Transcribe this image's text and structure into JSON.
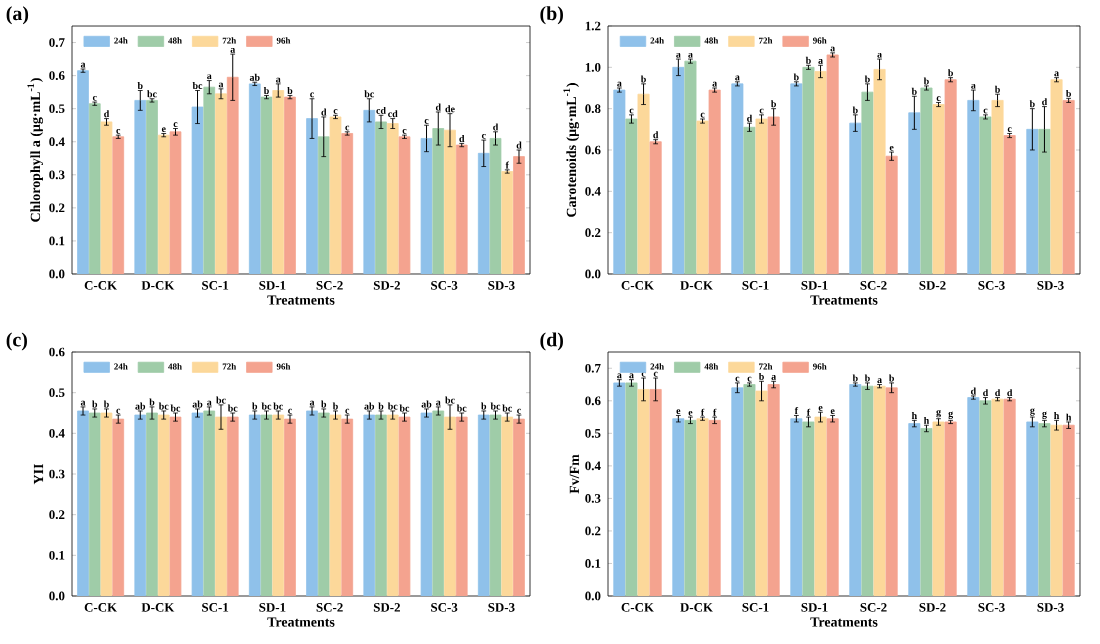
{
  "chart_data": [
    {
      "type": "bar",
      "title": "(a)",
      "xlabel": "Treatments",
      "ylabel": "Chlorophyll a (μg·mL$^{-1}$)",
      "categories": [
        "C-CK",
        "D-CK",
        "SC-1",
        "SD-1",
        "SC-2",
        "SD-2",
        "SC-3",
        "SD-3"
      ],
      "ylim": [
        0,
        0.75
      ],
      "yticks": [
        {
          "value": 0,
          "label": "0.0"
        },
        {
          "value": 0.1,
          "label": "0.1"
        },
        {
          "value": 0.2,
          "label": "0.2"
        },
        {
          "value": 0.3,
          "label": "0.3"
        },
        {
          "value": 0.4,
          "label": "0.4"
        },
        {
          "value": 0.5,
          "label": "0.5"
        },
        {
          "value": 0.6,
          "label": "0.6"
        },
        {
          "value": 0.7,
          "label": "0.7"
        }
      ],
      "legend": "top left",
      "series": [
        {
          "name": "24h",
          "color": "#8fc1ea",
          "values": [
            0.615,
            0.525,
            0.505,
            0.575,
            0.47,
            0.495,
            0.41,
            0.365
          ],
          "errors": [
            0.005,
            0.03,
            0.05,
            0.005,
            0.06,
            0.035,
            0.04,
            0.04
          ],
          "value_labels": [
            "a",
            "b",
            "bc",
            "ab",
            "c",
            "bc",
            "c",
            "c"
          ]
        },
        {
          "name": "48h",
          "color": "#9fcca8",
          "values": [
            0.515,
            0.525,
            0.565,
            0.535,
            0.415,
            0.46,
            0.44,
            0.41
          ],
          "errors": [
            0.005,
            0.005,
            0.02,
            0.005,
            0.06,
            0.02,
            0.05,
            0.02
          ],
          "value_labels": [
            "c",
            "bc",
            "a",
            "b",
            "d",
            "cd",
            "d",
            "d"
          ]
        },
        {
          "name": "72h",
          "color": "#fcd89a",
          "values": [
            0.46,
            0.42,
            0.545,
            0.555,
            0.475,
            0.455,
            0.435,
            0.31
          ],
          "errors": [
            0.01,
            0.005,
            0.015,
            0.02,
            0.005,
            0.015,
            0.05,
            0.005
          ],
          "value_labels": [
            "d",
            "e",
            "a",
            "a",
            "c",
            "cd",
            "de",
            "f"
          ]
        },
        {
          "name": "96h",
          "color": "#f4a38f",
          "values": [
            0.415,
            0.43,
            0.595,
            0.535,
            0.425,
            0.415,
            0.39,
            0.355
          ],
          "errors": [
            0.005,
            0.01,
            0.07,
            0.005,
            0.005,
            0.005,
            0.005,
            0.02
          ],
          "value_labels": [
            "c",
            "c",
            "a",
            "b",
            "c",
            "c",
            "d",
            "d"
          ]
        }
      ]
    },
    {
      "type": "bar",
      "title": "(b)",
      "xlabel": "Treatments",
      "ylabel": "Carotenoids (μg·mL$^{-1}$)",
      "categories": [
        "C-CK",
        "D-CK",
        "SC-1",
        "SD-1",
        "SC-2",
        "SD-2",
        "SC-3",
        "SD-3"
      ],
      "ylim": [
        0,
        1.2
      ],
      "yticks": [
        {
          "value": 0,
          "label": "0.0"
        },
        {
          "value": 0.2,
          "label": "0.2"
        },
        {
          "value": 0.4,
          "label": "0.4"
        },
        {
          "value": 0.6,
          "label": "0.6"
        },
        {
          "value": 0.8,
          "label": "0.8"
        },
        {
          "value": 1.0,
          "label": "1.0"
        },
        {
          "value": 1.2,
          "label": "1.2"
        }
      ],
      "legend": "top left",
      "series": [
        {
          "name": "24h",
          "color": "#8fc1ea",
          "values": [
            0.89,
            1.0,
            0.92,
            0.92,
            0.73,
            0.78,
            0.84,
            0.7
          ],
          "errors": [
            0.01,
            0.04,
            0.01,
            0.01,
            0.04,
            0.08,
            0.05,
            0.1
          ],
          "value_labels": [
            "a",
            "a",
            "a",
            "b",
            "b",
            "b",
            "a",
            "b"
          ]
        },
        {
          "name": "48h",
          "color": "#9fcca8",
          "values": [
            0.75,
            1.03,
            0.71,
            1.0,
            0.88,
            0.9,
            0.76,
            0.7
          ],
          "errors": [
            0.02,
            0.01,
            0.02,
            0.01,
            0.04,
            0.01,
            0.01,
            0.11
          ],
          "value_labels": [
            "c",
            "a",
            "d",
            "b",
            "b",
            "b",
            "c",
            "d"
          ]
        },
        {
          "name": "72h",
          "color": "#fcd89a",
          "values": [
            0.87,
            0.74,
            0.75,
            0.98,
            0.99,
            0.82,
            0.84,
            0.94
          ],
          "errors": [
            0.05,
            0.01,
            0.02,
            0.03,
            0.05,
            0.01,
            0.03,
            0.01
          ],
          "value_labels": [
            "b",
            "c",
            "c",
            "a",
            "a",
            "c",
            "b",
            "a"
          ]
        },
        {
          "name": "96h",
          "color": "#f4a38f",
          "values": [
            0.64,
            0.89,
            0.76,
            1.06,
            0.57,
            0.94,
            0.67,
            0.84
          ],
          "errors": [
            0.01,
            0.01,
            0.04,
            0.01,
            0.02,
            0.01,
            0.01,
            0.01
          ],
          "value_labels": [
            "d",
            "a",
            "b",
            "a",
            "e",
            "b",
            "c",
            "b"
          ]
        }
      ]
    },
    {
      "type": "bar",
      "title": "(c)",
      "xlabel": "Treatments",
      "ylabel": "YII",
      "categories": [
        "C-CK",
        "D-CK",
        "SC-1",
        "SD-1",
        "SC-2",
        "SD-2",
        "SC-3",
        "SD-3"
      ],
      "ylim": [
        0,
        0.6
      ],
      "yticks": [
        {
          "value": 0,
          "label": "0.0"
        },
        {
          "value": 0.1,
          "label": "0.1"
        },
        {
          "value": 0.2,
          "label": "0.2"
        },
        {
          "value": 0.3,
          "label": "0.3"
        },
        {
          "value": 0.4,
          "label": "0.4"
        },
        {
          "value": 0.5,
          "label": "0.5"
        },
        {
          "value": 0.6,
          "label": "0.6"
        }
      ],
      "legend": "top left",
      "series": [
        {
          "name": "24h",
          "color": "#8fc1ea",
          "values": [
            0.455,
            0.445,
            0.45,
            0.445,
            0.455,
            0.445,
            0.45,
            0.445
          ],
          "errors": [
            0.01,
            0.01,
            0.01,
            0.01,
            0.01,
            0.01,
            0.01,
            0.01
          ],
          "value_labels": [
            "a",
            "ab",
            "ab",
            "b",
            "a",
            "ab",
            "ab",
            "b"
          ]
        },
        {
          "name": "48h",
          "color": "#9fcca8",
          "values": [
            0.45,
            0.45,
            0.455,
            0.445,
            0.45,
            0.445,
            0.455,
            0.445
          ],
          "errors": [
            0.01,
            0.015,
            0.01,
            0.01,
            0.01,
            0.01,
            0.01,
            0.01
          ],
          "value_labels": [
            "b",
            "b",
            "a",
            "bc",
            "b",
            "b",
            "a",
            "bc"
          ]
        },
        {
          "name": "72h",
          "color": "#fcd89a",
          "values": [
            0.45,
            0.445,
            0.44,
            0.445,
            0.445,
            0.445,
            0.44,
            0.44
          ],
          "errors": [
            0.01,
            0.01,
            0.03,
            0.01,
            0.01,
            0.01,
            0.03,
            0.01
          ],
          "value_labels": [
            "b",
            "bc",
            "bc",
            "bc",
            "b",
            "bc",
            "bc",
            "bc"
          ]
        },
        {
          "name": "96h",
          "color": "#f4a38f",
          "values": [
            0.435,
            0.44,
            0.44,
            0.435,
            0.435,
            0.44,
            0.44,
            0.435
          ],
          "errors": [
            0.01,
            0.01,
            0.01,
            0.01,
            0.01,
            0.01,
            0.01,
            0.01
          ],
          "value_labels": [
            "c",
            "bc",
            "bc",
            "c",
            "c",
            "bc",
            "bc",
            "c"
          ]
        }
      ]
    },
    {
      "type": "bar",
      "title": "(d)",
      "xlabel": "Treatments",
      "ylabel": "Fv/Fm",
      "categories": [
        "C-CK",
        "D-CK",
        "SC-1",
        "SD-1",
        "SC-2",
        "SD-2",
        "SC-3",
        "SD-3"
      ],
      "ylim": [
        0,
        0.75
      ],
      "yticks": [
        {
          "value": 0,
          "label": "0.0"
        },
        {
          "value": 0.1,
          "label": "0.1"
        },
        {
          "value": 0.2,
          "label": "0.2"
        },
        {
          "value": 0.3,
          "label": "0.3"
        },
        {
          "value": 0.4,
          "label": "0.4"
        },
        {
          "value": 0.5,
          "label": "0.5"
        },
        {
          "value": 0.6,
          "label": "0.6"
        },
        {
          "value": 0.7,
          "label": "0.7"
        }
      ],
      "legend": "top left",
      "series": [
        {
          "name": "24h",
          "color": "#8fc1ea",
          "values": [
            0.655,
            0.545,
            0.64,
            0.545,
            0.65,
            0.53,
            0.61,
            0.535
          ],
          "errors": [
            0.01,
            0.01,
            0.015,
            0.01,
            0.005,
            0.01,
            0.005,
            0.015
          ],
          "value_labels": [
            "a",
            "e",
            "c",
            "f",
            "b",
            "h",
            "d",
            "g"
          ]
        },
        {
          "name": "48h",
          "color": "#9fcca8",
          "values": [
            0.655,
            0.54,
            0.65,
            0.535,
            0.645,
            0.515,
            0.6,
            0.53
          ],
          "errors": [
            0.01,
            0.01,
            0.005,
            0.015,
            0.01,
            0.01,
            0.01,
            0.01
          ],
          "value_labels": [
            "a",
            "e",
            "c",
            "f",
            "b",
            "h",
            "d",
            "g"
          ]
        },
        {
          "name": "72h",
          "color": "#fcd89a",
          "values": [
            0.635,
            0.545,
            0.63,
            0.55,
            0.645,
            0.535,
            0.605,
            0.525
          ],
          "errors": [
            0.035,
            0.005,
            0.03,
            0.015,
            0.005,
            0.01,
            0.005,
            0.015
          ],
          "value_labels": [
            "c",
            "f",
            "b",
            "e",
            "a",
            "g",
            "d",
            "h"
          ]
        },
        {
          "name": "96h",
          "color": "#f4a38f",
          "values": [
            0.635,
            0.54,
            0.65,
            0.545,
            0.64,
            0.535,
            0.605,
            0.525
          ],
          "errors": [
            0.035,
            0.01,
            0.01,
            0.01,
            0.015,
            0.005,
            0.005,
            0.01
          ],
          "value_labels": [
            "c",
            "f",
            "a",
            "e",
            "b",
            "g",
            "d",
            "h"
          ]
        }
      ]
    }
  ]
}
